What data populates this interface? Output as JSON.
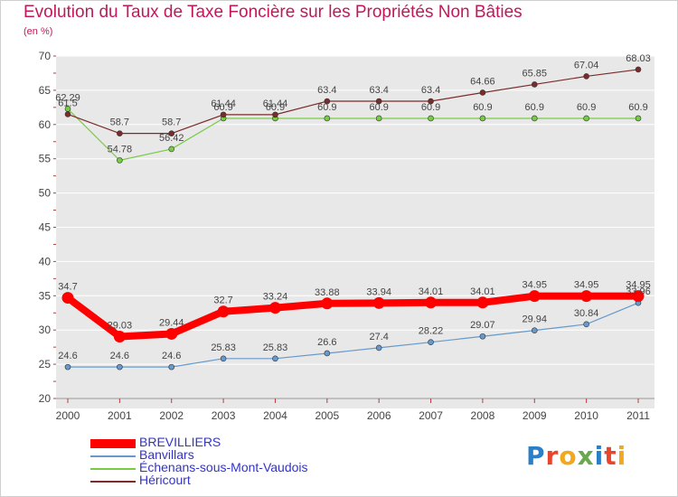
{
  "chart_data": {
    "type": "line",
    "title": "Evolution du Taux de Taxe Foncière sur les Propriétés Non Bâties",
    "subtitle": "(en %)",
    "xlabel": "",
    "ylabel": "",
    "ylim": [
      20,
      70
    ],
    "yticks": [
      "20",
      "25",
      "30",
      "35",
      "40",
      "45",
      "50",
      "55",
      "60",
      "65",
      "70"
    ],
    "categories": [
      "2000",
      "2001",
      "2002",
      "2003",
      "2004",
      "2005",
      "2006",
      "2007",
      "2008",
      "2009",
      "2010",
      "2011"
    ],
    "legend_position": "bottom-left",
    "grid": "horizontal",
    "series": [
      {
        "name": "BREVILLIERS",
        "color": "#ff0000",
        "values": [
          34.7,
          29.03,
          29.44,
          32.7,
          33.24,
          33.88,
          33.94,
          34.01,
          34.01,
          34.95,
          34.95,
          34.95
        ],
        "labels": [
          "34.7",
          "29.03",
          "29.44",
          "32.7",
          "33.24",
          "33.88",
          "33.94",
          "34.01",
          "34.01",
          "34.95",
          "34.95",
          "34.95"
        ]
      },
      {
        "name": "Banvillars",
        "color": "#6699cc",
        "values": [
          24.6,
          24.6,
          24.6,
          25.83,
          25.83,
          26.6,
          27.4,
          28.22,
          29.07,
          29.94,
          30.84,
          33.96
        ],
        "labels": [
          "24.6",
          "24.6",
          "24.6",
          "25.83",
          "25.83",
          "26.6",
          "27.4",
          "28.22",
          "29.07",
          "29.94",
          "30.84",
          "33.96"
        ]
      },
      {
        "name": "Échenans-sous-Mont-Vaudois",
        "color": "#77cc44",
        "values": [
          62.29,
          54.78,
          56.42,
          60.9,
          60.9,
          60.9,
          60.9,
          60.9,
          60.9,
          60.9,
          60.9,
          60.9
        ],
        "labels": [
          "62.29",
          "54.78",
          "56.42",
          "60.9",
          "60.9",
          "60.9",
          "60.9",
          "60.9",
          "60.9",
          "60.9",
          "60.9",
          "60.9"
        ]
      },
      {
        "name": "Héricourt",
        "color": "#7b2b2b",
        "values": [
          61.5,
          58.7,
          58.7,
          61.44,
          61.44,
          63.4,
          63.4,
          63.4,
          64.66,
          65.85,
          67.04,
          68.03
        ],
        "labels": [
          "61.5",
          "58.7",
          "58.7",
          "61.44",
          "61.44",
          "63.4",
          "63.4",
          "63.4",
          "64.66",
          "65.85",
          "67.04",
          "68.03"
        ]
      }
    ]
  },
  "logo_text": "Proxiti"
}
